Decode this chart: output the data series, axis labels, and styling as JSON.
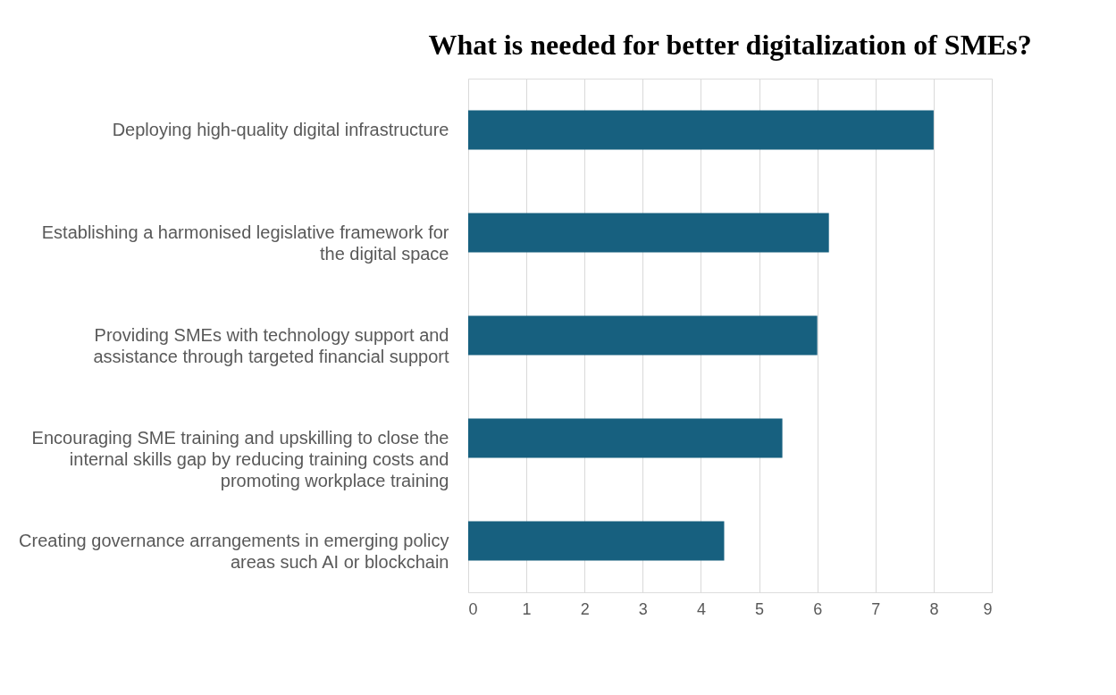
{
  "chart_data": {
    "type": "bar",
    "orientation": "horizontal",
    "title": "What is needed for better digitalization of SMEs?",
    "categories": [
      "Deploying high-quality digital infrastructure",
      "Establishing a harmonised legislative framework for the digital space",
      "Providing SMEs with technology support and assistance through targeted financial support",
      "Encouraging SME training and upskilling to close the internal skills gap by reducing training costs and promoting workplace training",
      "Creating governance arrangements in emerging policy areas such AI or blockchain"
    ],
    "values": [
      8,
      6.2,
      6,
      5.4,
      4.4
    ],
    "color": "#17607f",
    "xlim": [
      0,
      9
    ],
    "xticks": [
      0,
      1,
      2,
      3,
      4,
      5,
      6,
      7,
      8,
      9
    ],
    "grid": "x"
  }
}
